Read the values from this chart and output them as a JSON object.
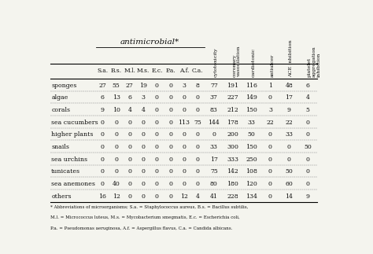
{
  "title": "antimicrobial*",
  "header_labels_h": [
    "S.a.",
    "B.s.",
    "M.l.",
    "M.s.",
    "E.c.",
    "P.a.",
    "A.f.",
    "C.a."
  ],
  "header_labels_v": [
    "cytotoxicity",
    "coronary\nvasodilation",
    "cardiotonic",
    "antiulcer",
    "ACE inhibition",
    "platelet\naggregation\ninhibition"
  ],
  "rows": [
    [
      "sponges",
      27,
      55,
      27,
      19,
      0,
      0,
      3,
      8,
      77,
      191,
      116,
      1,
      48,
      6
    ],
    [
      "algae",
      6,
      13,
      6,
      3,
      0,
      0,
      0,
      0,
      37,
      227,
      149,
      0,
      17,
      4
    ],
    [
      "corals",
      9,
      10,
      4,
      4,
      0,
      0,
      0,
      0,
      83,
      212,
      150,
      3,
      9,
      5
    ],
    [
      "sea cucumbers",
      0,
      0,
      0,
      0,
      0,
      0,
      113,
      75,
      144,
      178,
      33,
      22,
      22,
      0
    ],
    [
      "higher plants",
      0,
      0,
      0,
      0,
      0,
      0,
      0,
      0,
      0,
      200,
      50,
      0,
      33,
      0
    ],
    [
      "snails",
      0,
      0,
      0,
      0,
      0,
      0,
      0,
      0,
      33,
      300,
      150,
      0,
      0,
      50
    ],
    [
      "sea urchins",
      0,
      0,
      0,
      0,
      0,
      0,
      0,
      0,
      17,
      333,
      250,
      0,
      0,
      0
    ],
    [
      "tunicates",
      0,
      0,
      0,
      0,
      0,
      0,
      0,
      0,
      75,
      142,
      108,
      0,
      50,
      0
    ],
    [
      "sea anemones",
      0,
      40,
      0,
      0,
      0,
      0,
      0,
      0,
      80,
      180,
      120,
      0,
      60,
      0
    ],
    [
      "others",
      16,
      12,
      0,
      0,
      0,
      0,
      12,
      4,
      41,
      228,
      134,
      0,
      14,
      9
    ]
  ],
  "footnote_lines": [
    "* Abbreviations of microorganisms; S.a. = Staphylococcus aureus, B.s. = Bacillus subtilis,",
    "M.l. = Micrococcus luteus, M.s. = Mycobacterium smegmatis, E.c. = Escherichia coli,",
    "P.a. = Pseudomonas aeruginosa, A.f. = Aspergillus flavus, C.a. = Candida albicans."
  ],
  "bg_color": "#f4f4ee",
  "text_color": "#111111"
}
